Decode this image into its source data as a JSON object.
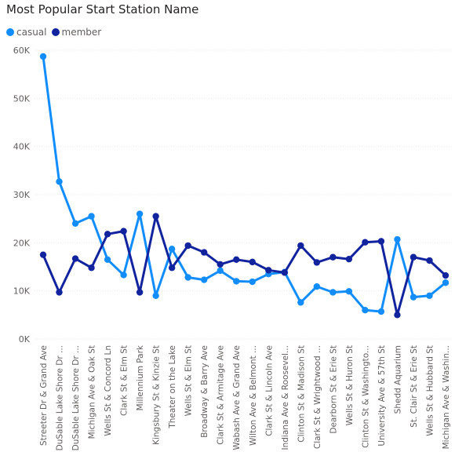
{
  "chart_data": {
    "type": "line",
    "title": "Most Popular Start Station Name",
    "categories": [
      "Streeter Dr & Grand Ave",
      "DuSable Lake Shore Dr ...",
      "DuSable Lake Shore Dr ...",
      "Michigan Ave & Oak St",
      "Wells St & Concord Ln",
      "Clark St & Elm St",
      "Millennium Park",
      "Kingsbury St & Kinzie St",
      "Theater on the Lake",
      "Wells St & Elm St",
      "Broadway & Barry Ave",
      "Clark St & Armitage Ave",
      "Wabash Ave & Grand Ave",
      "Wilton Ave & Belmont ...",
      "Clark St & Lincoln Ave",
      "Indiana Ave & Roosevel...",
      "Clinton St & Madison St",
      "Clark St & Wrightwood ...",
      "Dearborn St & Erie St",
      "Wells St & Huron St",
      "Clinton St & Washingto...",
      "University Ave & 57th St",
      "Shedd Aquarium",
      "St. Clair St & Erie St",
      "Wells St & Hubbard St",
      "Michigan Ave & Washin..."
    ],
    "series": [
      {
        "name": "casual",
        "color": "#118DFF",
        "values": [
          58700,
          32700,
          24000,
          25500,
          16500,
          13300,
          26000,
          9000,
          18700,
          12800,
          12300,
          14200,
          12000,
          11900,
          13500,
          13900,
          7600,
          10900,
          9700,
          9900,
          6000,
          5700,
          20700,
          8700,
          9000,
          11700
        ]
      },
      {
        "name": "member",
        "color": "#12239E",
        "values": [
          17500,
          9700,
          16700,
          14800,
          21800,
          22400,
          9700,
          25500,
          14800,
          19400,
          18000,
          15500,
          16500,
          16000,
          14300,
          13800,
          19400,
          15900,
          17000,
          16600,
          20100,
          20300,
          5000,
          17000,
          16300,
          13200
        ]
      }
    ],
    "ylim": [
      0,
      60000
    ],
    "yticks": [
      0,
      10000,
      20000,
      30000,
      40000,
      50000,
      60000
    ],
    "ytick_labels": [
      "0K",
      "10K",
      "20K",
      "30K",
      "40K",
      "50K",
      "60K"
    ],
    "grid": true,
    "legend": "top-left"
  }
}
